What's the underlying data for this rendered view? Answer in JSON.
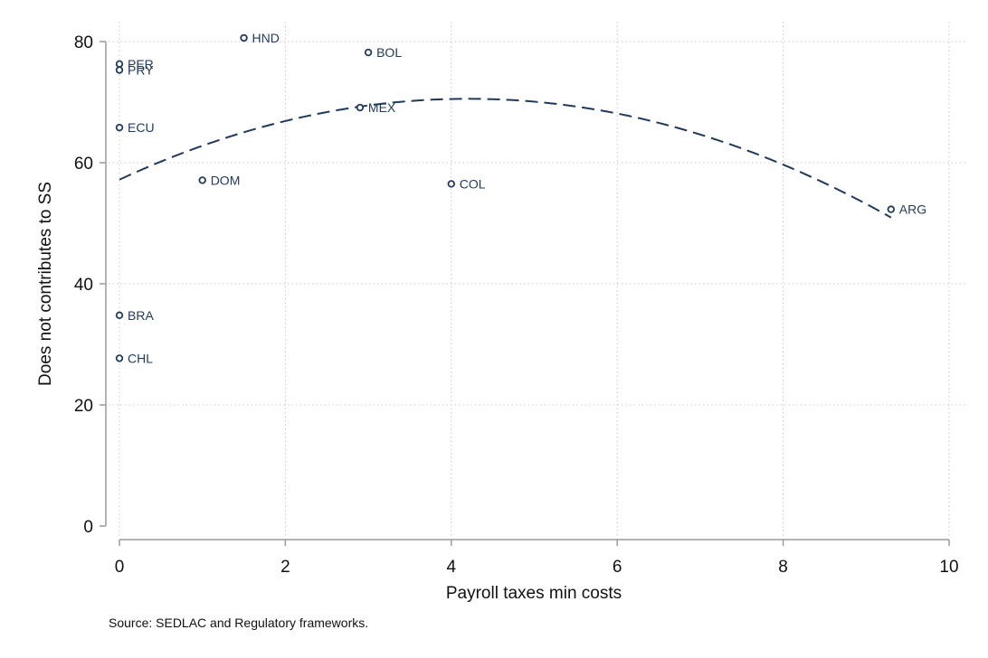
{
  "chart_data": {
    "type": "scatter",
    "xlabel": "Payroll taxes min costs",
    "ylabel": "Does not contributes to SS",
    "note": "Source: SEDLAC and Regulatory frameworks.",
    "xlim": [
      0,
      10
    ],
    "ylim": [
      0,
      80
    ],
    "x_ticks": [
      0,
      2,
      4,
      6,
      8,
      10
    ],
    "y_ticks": [
      0,
      20,
      40,
      60,
      80
    ],
    "grid": true,
    "legend": "none",
    "marker_color": "#1f3a5a",
    "label_color": "#1f3a5a",
    "points": [
      {
        "label": "HND",
        "x": 1.5,
        "y": 80.6
      },
      {
        "label": "BOL",
        "x": 3.0,
        "y": 78.2
      },
      {
        "label": "PER",
        "x": 0.0,
        "y": 76.3
      },
      {
        "label": "PRY",
        "x": 0.0,
        "y": 75.3
      },
      {
        "label": "MEX",
        "x": 2.9,
        "y": 69.1
      },
      {
        "label": "ECU",
        "x": 0.0,
        "y": 65.8
      },
      {
        "label": "DOM",
        "x": 1.0,
        "y": 57.1
      },
      {
        "label": "COL",
        "x": 4.0,
        "y": 56.5
      },
      {
        "label": "ARG",
        "x": 9.3,
        "y": 52.3
      },
      {
        "label": "BRA",
        "x": 0.0,
        "y": 34.8
      },
      {
        "label": "CHL",
        "x": 0.0,
        "y": 27.7
      }
    ],
    "fit": {
      "type": "quadratic",
      "x_range": [
        0,
        9.3
      ],
      "coefficients": [
        57.2,
        6.35,
        -0.755
      ],
      "line_style": "dashed",
      "color": "#1f3a5a"
    }
  }
}
